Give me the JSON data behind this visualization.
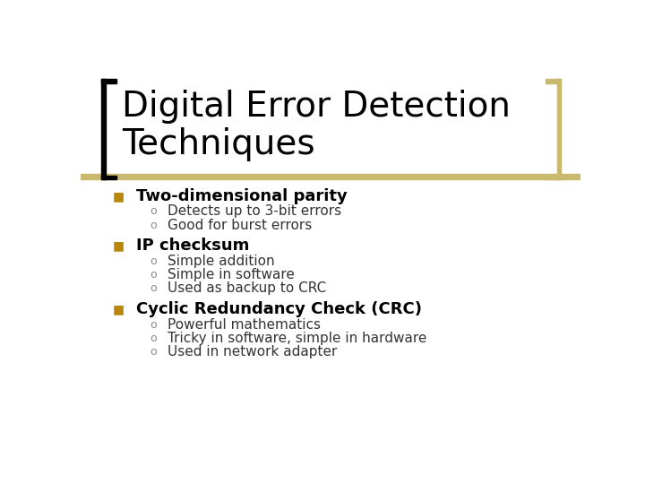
{
  "title_line1": "Digital Error Detection",
  "title_line2": "Techniques",
  "title_fontsize": 28,
  "title_color": "#000000",
  "background_color": "#ffffff",
  "header_bar_color": "#c8b96e",
  "bracket_left_color": "#000000",
  "bracket_right_color": "#c8b96e",
  "bullet_color": "#b8860b",
  "bullet_marker": "■",
  "sub_marker": "o",
  "items": [
    {
      "label": "Two-dimensional parity",
      "subitems": [
        "Detects up to 3-bit errors",
        "Good for burst errors"
      ]
    },
    {
      "label": "IP checksum",
      "subitems": [
        "Simple addition",
        "Simple in software",
        "Used as backup to CRC"
      ]
    },
    {
      "label": "Cyclic Redundancy Check (CRC)",
      "subitems": [
        "Powerful mathematics",
        "Tricky in software, simple in hardware",
        "Used in network adapter"
      ]
    }
  ],
  "label_fontsize": 13,
  "sub_fontsize": 11,
  "bullet_fontsize": 10,
  "sub_bullet_fontsize": 9
}
